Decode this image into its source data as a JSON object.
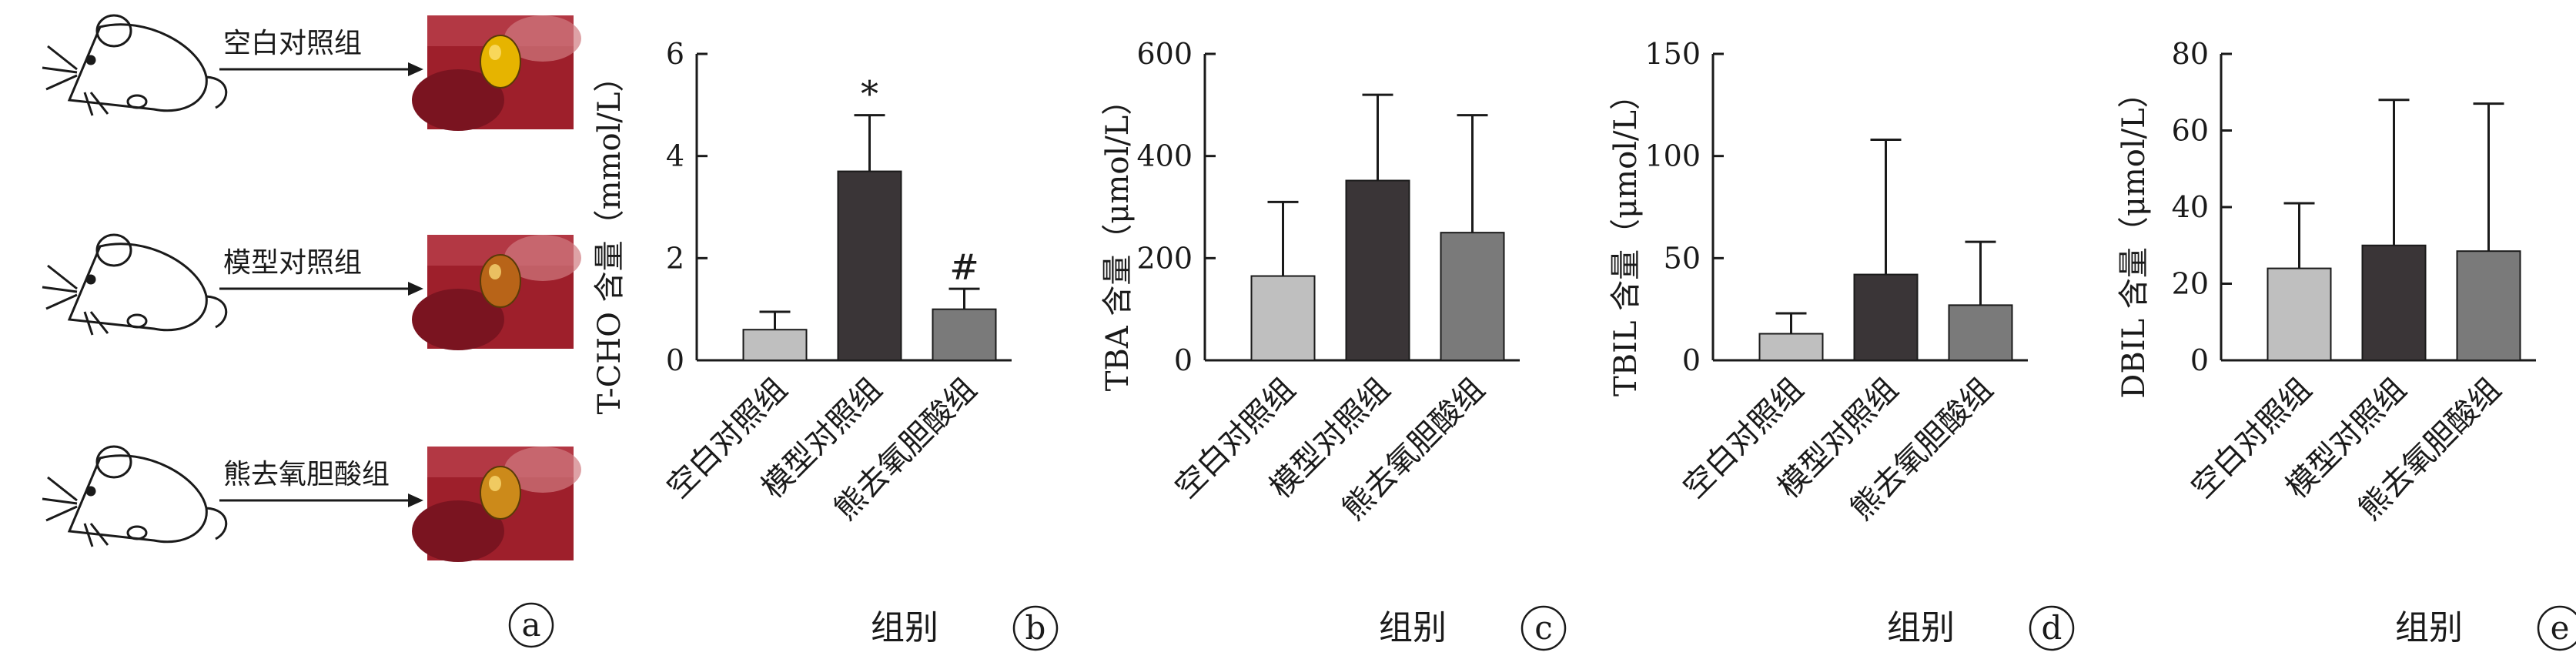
{
  "panel_a": {
    "letter": "a",
    "groups": [
      {
        "label": "空白对照组",
        "image_icon": "liver-gallbladder-photo-normal"
      },
      {
        "label": "模型对照组",
        "image_icon": "liver-gallbladder-photo-model"
      },
      {
        "label": "熊去氧胆酸组",
        "image_icon": "liver-gallbladder-photo-udca"
      }
    ],
    "mouse_icon": "mouse-line-drawing-icon"
  },
  "colors": {
    "blank": "#bfbfbf",
    "model": "#3a3537",
    "udca": "#7a7a7a",
    "axis": "#1a1a1a"
  },
  "chart_data": [
    {
      "type": "bar",
      "panel": "b",
      "categories": [
        "空白对照组",
        "模型对照组",
        "熊去氧胆酸组"
      ],
      "values": [
        0.6,
        3.7,
        1.0
      ],
      "errors": [
        0.35,
        1.1,
        0.4
      ],
      "sig_labels": [
        "",
        "*",
        "#"
      ],
      "ylabel": "T-CHO 含量（mmol/L）",
      "xlabel": "组别",
      "ylim": [
        0,
        6
      ],
      "yticks": [
        0,
        2,
        4,
        6
      ]
    },
    {
      "type": "bar",
      "panel": "c",
      "categories": [
        "空白对照组",
        "模型对照组",
        "熊去氧胆酸组"
      ],
      "values": [
        165,
        352,
        250
      ],
      "errors": [
        145,
        168,
        230
      ],
      "sig_labels": [
        "",
        "",
        ""
      ],
      "ylabel": "TBA 含量（μmol/L）",
      "xlabel": "组别",
      "ylim": [
        0,
        600
      ],
      "yticks": [
        0,
        200,
        400,
        600
      ]
    },
    {
      "type": "bar",
      "panel": "d",
      "categories": [
        "空白对照组",
        "模型对照组",
        "熊去氧胆酸组"
      ],
      "values": [
        13,
        42,
        27
      ],
      "errors": [
        10,
        66,
        31
      ],
      "sig_labels": [
        "",
        "",
        ""
      ],
      "ylabel": "TBIL 含量（μmol/L）",
      "xlabel": "组别",
      "ylim": [
        0,
        150
      ],
      "yticks": [
        0,
        50,
        100,
        150
      ]
    },
    {
      "type": "bar",
      "panel": "e",
      "categories": [
        "空白对照组",
        "模型对照组",
        "熊去氧胆酸组"
      ],
      "values": [
        24,
        30,
        28.5
      ],
      "errors": [
        17,
        38,
        38.5
      ],
      "sig_labels": [
        "",
        "",
        ""
      ],
      "ylabel": "DBIL 含量（μmol/L）",
      "xlabel": "组别",
      "ylim": [
        0,
        80
      ],
      "yticks": [
        0,
        20,
        40,
        60,
        80
      ]
    }
  ]
}
